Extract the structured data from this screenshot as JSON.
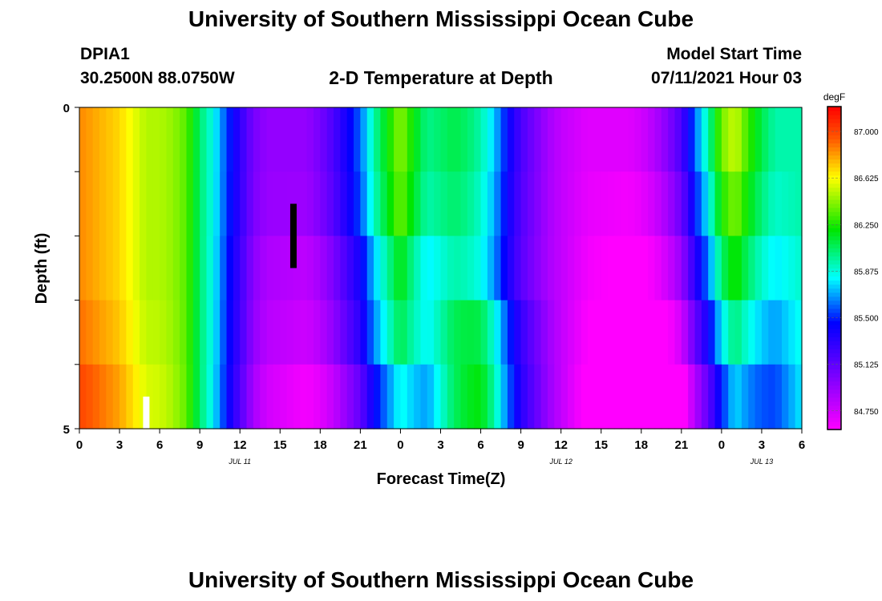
{
  "page": {
    "title": "University of Southern Mississippi Ocean Cube",
    "footer_title": "University of Southern Mississippi Ocean Cube",
    "station": "DPIA1",
    "coords": "30.2500N  88.0750W",
    "subtitle": "2-D Temperature at Depth",
    "model_label": "Model Start Time",
    "model_time": "07/11/2021 Hour 03"
  },
  "chart_data": {
    "type": "heatmap",
    "title": "2-D Temperature at Depth",
    "xlabel": "Forecast Time(Z)",
    "ylabel": "Depth (ft)",
    "x_unit": "hours from 07/11 00Z",
    "xlim": [
      0,
      54
    ],
    "ylim": [
      0,
      5
    ],
    "x_tick_labels": [
      "0",
      "3",
      "6",
      "9",
      "12",
      "15",
      "18",
      "21",
      "0",
      "3",
      "6",
      "9",
      "12",
      "15",
      "18",
      "21",
      "0",
      "3",
      "6"
    ],
    "date_labels": [
      {
        "text": "JUL 11",
        "hour": 12
      },
      {
        "text": "JUL 12",
        "hour": 36
      },
      {
        "text": "JUL 13",
        "hour": 51
      }
    ],
    "y_tick_labels": [
      {
        "text": "0",
        "depth": 0
      },
      {
        "text": "5",
        "depth": 5
      }
    ],
    "colorbar": {
      "unit": "degF",
      "min": 84.6,
      "max": 87.2,
      "ticks": [
        "87.000",
        "86.625",
        "86.250",
        "85.875",
        "85.500",
        "85.125",
        "84.750"
      ],
      "tick_values": [
        87.0,
        86.625,
        86.25,
        85.875,
        85.5,
        85.125,
        84.75
      ]
    },
    "depth_layers": [
      0,
      1,
      2,
      3,
      4,
      5
    ],
    "temperature_profile": {
      "description": "Surface-layer temperature (degF) vs. forecast hour; deeper layers deviate by per-layer offsets",
      "hours": [
        0,
        1,
        2,
        3,
        4,
        5,
        6,
        7,
        8,
        9,
        10,
        11,
        12,
        13,
        14,
        15,
        16,
        17,
        18,
        19,
        20,
        21,
        22,
        23,
        24,
        25,
        26,
        27,
        28,
        29,
        30,
        31,
        32,
        33,
        34,
        35,
        36,
        37,
        38,
        39,
        40,
        41,
        42,
        43,
        44,
        45,
        46,
        47,
        48,
        49,
        50,
        51,
        52,
        53,
        54
      ],
      "values": [
        86.85,
        86.8,
        86.75,
        86.7,
        86.6,
        86.5,
        86.5,
        86.45,
        86.35,
        86.05,
        85.85,
        85.55,
        85.3,
        85.05,
        84.95,
        84.95,
        84.95,
        84.95,
        85.05,
        85.2,
        85.4,
        85.6,
        85.95,
        86.2,
        86.45,
        86.2,
        86.0,
        86.05,
        86.1,
        86.05,
        85.95,
        85.75,
        85.45,
        85.2,
        85.05,
        84.9,
        84.8,
        84.75,
        84.7,
        84.7,
        84.7,
        84.7,
        84.75,
        84.85,
        85.0,
        85.2,
        85.6,
        85.95,
        86.4,
        86.55,
        86.3,
        86.1,
        85.95,
        85.95,
        85.95
      ]
    },
    "markers": [
      {
        "name": "black-bar",
        "hour": 16,
        "depth_from": 1.5,
        "depth_to": 2.5,
        "color": "#000000"
      },
      {
        "name": "white-bar",
        "hour": 5,
        "depth_from": 4.5,
        "depth_to": 5.0,
        "color": "#ffffff"
      }
    ]
  }
}
